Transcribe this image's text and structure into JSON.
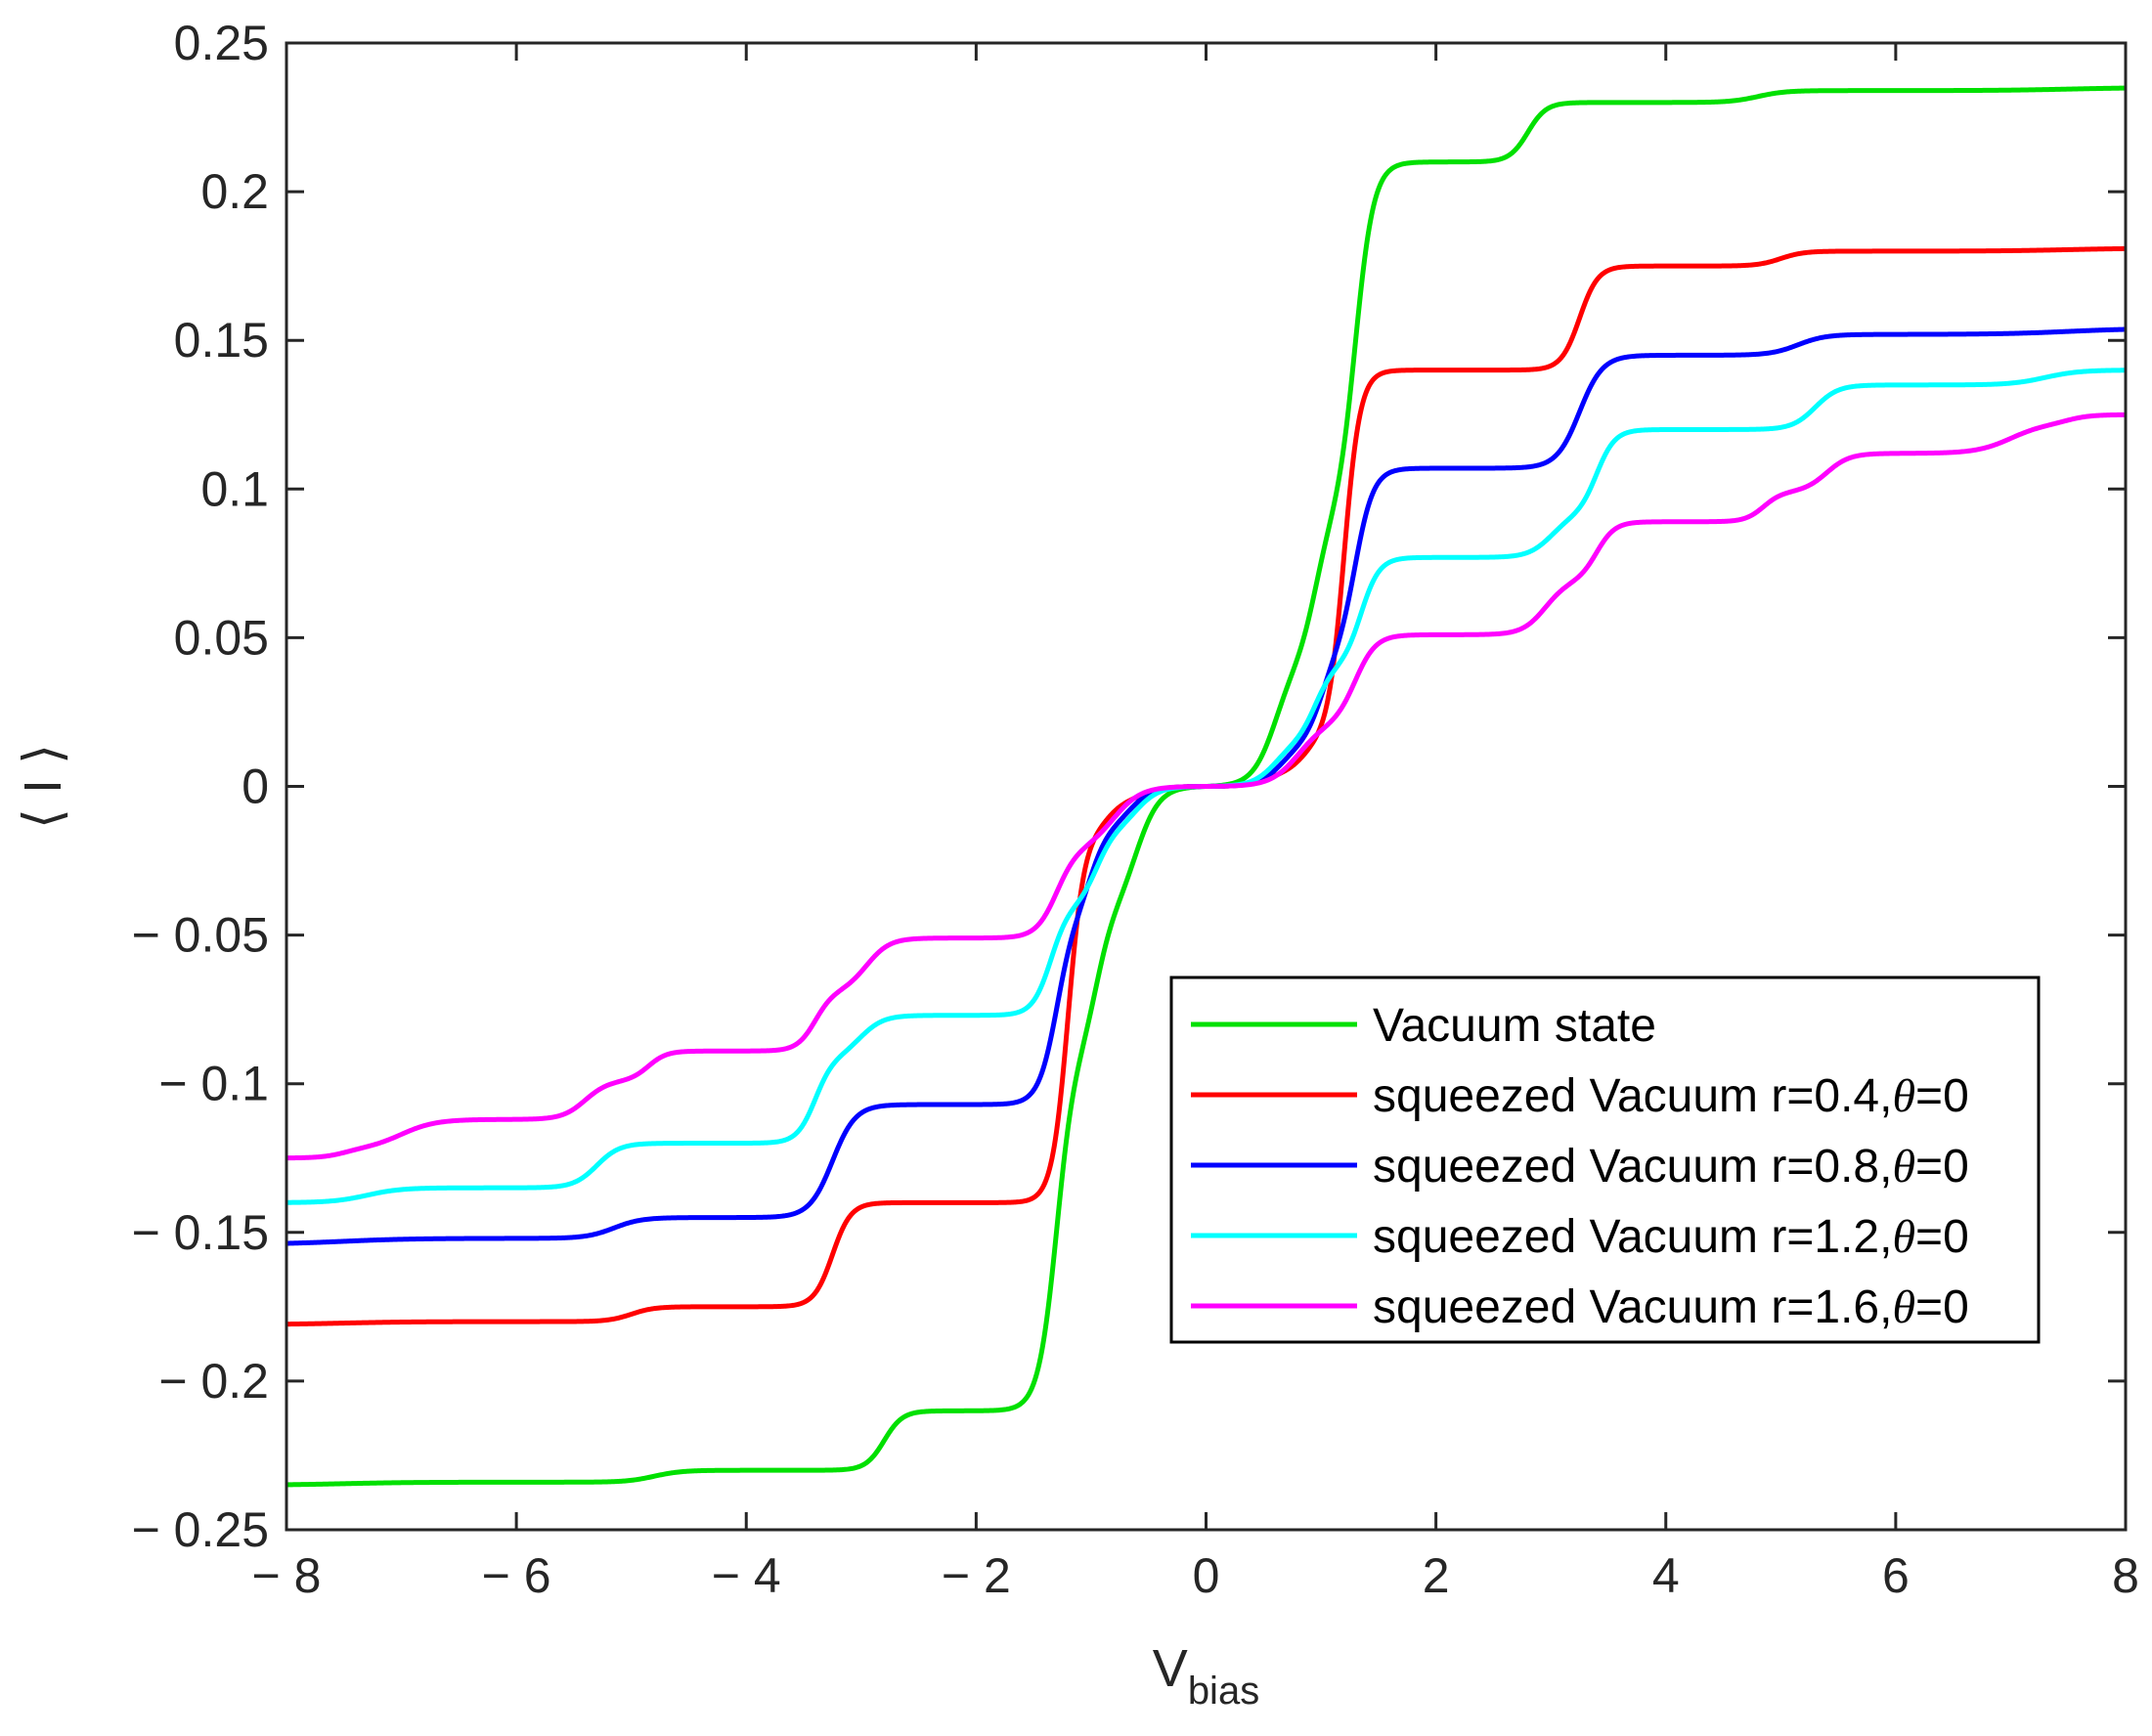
{
  "chart_data": {
    "type": "line",
    "title": "",
    "xlabel": "V",
    "xlabel_sub": "bias",
    "ylabel": "⟨ I ⟩",
    "xlim": [
      -8,
      8
    ],
    "ylim": [
      -0.25,
      0.25
    ],
    "x_ticks": [
      -8,
      -6,
      -4,
      -2,
      0,
      2,
      4,
      6,
      8
    ],
    "x_tick_labels": [
      "− 8",
      "− 6",
      "− 4",
      "− 2",
      "0",
      "2",
      "4",
      "6",
      "8"
    ],
    "y_ticks": [
      0.25,
      0.2,
      0.15,
      0.1,
      0.05,
      0,
      -0.05,
      -0.1,
      -0.15,
      -0.2,
      -0.25
    ],
    "y_tick_labels": [
      "0.25",
      "0.2",
      "0.15",
      "0.1",
      "0.05",
      "0",
      "− 0.05",
      "− 0.1",
      "− 0.15",
      "− 0.2",
      "− 0.25"
    ],
    "grid": false,
    "legend_position": "lower-right",
    "series": [
      {
        "name": "Vacuum state",
        "label_prefix": "Vacuum state",
        "theta_part": "",
        "color": "#00e000",
        "steps": [
          {
            "pos": 0.6,
            "height": 0.042,
            "width": 0.1
          },
          {
            "pos": 0.95,
            "height": 0.048,
            "width": 0.08
          },
          {
            "pos": 1.3,
            "height": 0.12,
            "width": 0.08
          },
          {
            "pos": 2.8,
            "height": 0.02,
            "width": 0.08
          },
          {
            "pos": 4.8,
            "height": 0.004,
            "width": 0.12
          },
          {
            "pos": 7.5,
            "height": 0.001,
            "width": 0.3
          }
        ]
      },
      {
        "name": "squeezed Vacuum r=0.4,θ=0",
        "label_prefix": "squeezed Vacuum r=0.4,",
        "theta_part": "=0",
        "color": "#ff0000",
        "steps": [
          {
            "pos": 0.55,
            "height": 0.005,
            "width": 0.1
          },
          {
            "pos": 0.85,
            "height": 0.01,
            "width": 0.08
          },
          {
            "pos": 1.2,
            "height": 0.125,
            "width": 0.07
          },
          {
            "pos": 3.25,
            "height": 0.035,
            "width": 0.08
          },
          {
            "pos": 5.0,
            "height": 0.005,
            "width": 0.1
          },
          {
            "pos": 7.5,
            "height": 0.001,
            "width": 0.3
          }
        ]
      },
      {
        "name": "squeezed Vacuum r=0.8,θ=0",
        "label_prefix": "squeezed Vacuum r=0.8,",
        "theta_part": "=0",
        "color": "#0000ff",
        "steps": [
          {
            "pos": 0.65,
            "height": 0.014,
            "width": 0.1
          },
          {
            "pos": 1.0,
            "height": 0.03,
            "width": 0.08
          },
          {
            "pos": 1.3,
            "height": 0.063,
            "width": 0.08
          },
          {
            "pos": 3.25,
            "height": 0.038,
            "width": 0.1
          },
          {
            "pos": 5.15,
            "height": 0.007,
            "width": 0.12
          },
          {
            "pos": 7.5,
            "height": 0.002,
            "width": 0.3
          }
        ]
      },
      {
        "name": "squeezed Vacuum r=1.2,θ=0",
        "label_prefix": "squeezed Vacuum r=1.2,",
        "theta_part": "=0",
        "color": "#00ffff",
        "steps": [
          {
            "pos": 0.6,
            "height": 0.015,
            "width": 0.1
          },
          {
            "pos": 0.95,
            "height": 0.025,
            "width": 0.08
          },
          {
            "pos": 1.35,
            "height": 0.037,
            "width": 0.08
          },
          {
            "pos": 3.0,
            "height": 0.014,
            "width": 0.1
          },
          {
            "pos": 3.4,
            "height": 0.029,
            "width": 0.08
          },
          {
            "pos": 5.3,
            "height": 0.015,
            "width": 0.1
          },
          {
            "pos": 7.3,
            "height": 0.005,
            "width": 0.15
          }
        ]
      },
      {
        "name": "squeezed Vacuum r=1.6,θ=0",
        "label_prefix": "squeezed Vacuum r=1.6,",
        "theta_part": "=0",
        "color": "#ff00ff",
        "steps": [
          {
            "pos": 0.8,
            "height": 0.021,
            "width": 0.12
          },
          {
            "pos": 1.3,
            "height": 0.03,
            "width": 0.09
          },
          {
            "pos": 2.95,
            "height": 0.018,
            "width": 0.1
          },
          {
            "pos": 3.4,
            "height": 0.02,
            "width": 0.08
          },
          {
            "pos": 4.85,
            "height": 0.01,
            "width": 0.08
          },
          {
            "pos": 5.4,
            "height": 0.013,
            "width": 0.1
          },
          {
            "pos": 7.0,
            "height": 0.01,
            "width": 0.15
          },
          {
            "pos": 7.5,
            "height": 0.003,
            "width": 0.1
          }
        ]
      }
    ]
  }
}
